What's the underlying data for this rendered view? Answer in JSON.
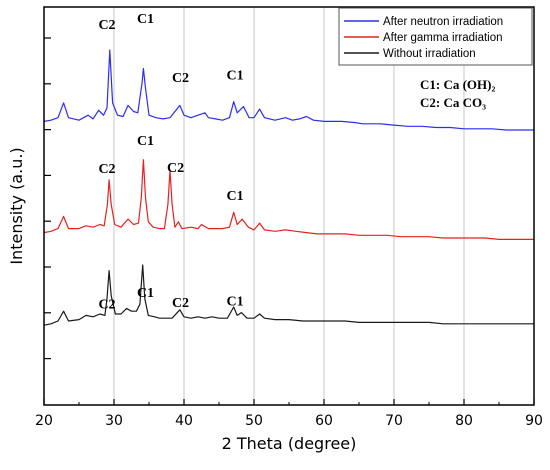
{
  "chart_data": {
    "type": "line",
    "xlabel": "2 Theta (degree)",
    "ylabel": "Intensity (a.u.)",
    "xlim": [
      20,
      90
    ],
    "xticks": [
      20,
      30,
      40,
      50,
      60,
      70,
      80,
      90
    ],
    "grid": true,
    "legend_position": "top-right",
    "series": [
      {
        "name": "After neutron irradiation",
        "color": "#2d2df0",
        "points": [
          [
            20,
            93
          ],
          [
            21,
            92
          ],
          [
            22,
            90
          ],
          [
            22.8,
            78
          ],
          [
            23.5,
            90
          ],
          [
            25,
            92
          ],
          [
            26.3,
            88
          ],
          [
            27,
            91
          ],
          [
            27.8,
            84
          ],
          [
            28.5,
            88
          ],
          [
            29.0,
            82
          ],
          [
            29.4,
            35
          ],
          [
            29.8,
            78
          ],
          [
            30.5,
            88
          ],
          [
            31.3,
            89
          ],
          [
            32.0,
            80
          ],
          [
            32.8,
            85
          ],
          [
            33.4,
            86
          ],
          [
            34.0,
            62
          ],
          [
            34.2,
            50
          ],
          [
            34.5,
            66
          ],
          [
            35.0,
            88
          ],
          [
            36.0,
            90
          ],
          [
            37.0,
            91
          ],
          [
            38.0,
            90
          ],
          [
            39.4,
            80
          ],
          [
            40.0,
            88
          ],
          [
            41.0,
            90
          ],
          [
            42.0,
            88
          ],
          [
            43.0,
            86
          ],
          [
            43.5,
            90
          ],
          [
            44.5,
            91
          ],
          [
            45.5,
            92
          ],
          [
            46.5,
            90
          ],
          [
            47.1,
            77
          ],
          [
            47.6,
            86
          ],
          [
            48.5,
            81
          ],
          [
            49.3,
            90
          ],
          [
            50.0,
            90
          ],
          [
            50.8,
            83
          ],
          [
            51.5,
            90
          ],
          [
            53.0,
            92
          ],
          [
            54.5,
            90
          ],
          [
            55.5,
            92
          ],
          [
            56.5,
            91
          ],
          [
            57.5,
            89
          ],
          [
            58.5,
            92
          ],
          [
            60.0,
            93
          ],
          [
            62.5,
            93
          ],
          [
            64.5,
            94
          ],
          [
            65.5,
            95
          ],
          [
            68.0,
            95
          ],
          [
            70.0,
            96
          ],
          [
            72.0,
            97
          ],
          [
            74.0,
            97
          ],
          [
            76.0,
            98
          ],
          [
            78.0,
            98
          ],
          [
            80.0,
            99
          ],
          [
            82.0,
            99
          ],
          [
            84.0,
            99
          ],
          [
            86.0,
            100
          ],
          [
            88.0,
            100
          ],
          [
            90.0,
            100
          ]
        ]
      },
      {
        "name": "After gamma irradiation",
        "color": "#e32222",
        "points": [
          [
            20,
            76
          ],
          [
            21,
            75
          ],
          [
            22,
            73
          ],
          [
            22.8,
            64
          ],
          [
            23.5,
            73
          ],
          [
            25,
            73
          ],
          [
            26,
            71
          ],
          [
            27,
            72
          ],
          [
            28,
            70
          ],
          [
            28.6,
            71
          ],
          [
            29.05,
            55
          ],
          [
            29.3,
            37
          ],
          [
            29.6,
            55
          ],
          [
            30.1,
            70
          ],
          [
            31,
            72
          ],
          [
            32,
            66
          ],
          [
            32.8,
            70
          ],
          [
            33.5,
            69
          ],
          [
            33.9,
            50
          ],
          [
            34.2,
            22
          ],
          [
            34.5,
            50
          ],
          [
            34.9,
            68
          ],
          [
            35.6,
            72
          ],
          [
            36.5,
            73
          ],
          [
            37.2,
            73
          ],
          [
            37.7,
            55
          ],
          [
            38.0,
            30
          ],
          [
            38.3,
            55
          ],
          [
            38.7,
            72
          ],
          [
            39.2,
            68
          ],
          [
            39.7,
            73
          ],
          [
            41,
            72
          ],
          [
            42,
            73
          ],
          [
            42.5,
            70
          ],
          [
            43.5,
            73
          ],
          [
            44.5,
            73
          ],
          [
            45.5,
            73
          ],
          [
            46.5,
            72
          ],
          [
            47.1,
            61
          ],
          [
            47.6,
            70
          ],
          [
            48.3,
            66
          ],
          [
            49.2,
            72
          ],
          [
            50.0,
            74
          ],
          [
            50.8,
            69
          ],
          [
            51.5,
            74
          ],
          [
            53,
            75
          ],
          [
            54.5,
            74
          ],
          [
            56,
            75
          ],
          [
            57.5,
            76
          ],
          [
            59,
            77
          ],
          [
            61,
            77
          ],
          [
            63,
            77
          ],
          [
            65,
            78
          ],
          [
            67,
            78
          ],
          [
            69,
            78
          ],
          [
            71,
            79
          ],
          [
            73,
            79
          ],
          [
            75,
            79
          ],
          [
            77,
            80
          ],
          [
            79,
            80
          ],
          [
            81,
            80
          ],
          [
            83,
            80
          ],
          [
            85,
            81
          ],
          [
            87,
            81
          ],
          [
            89,
            81
          ],
          [
            90,
            81
          ]
        ]
      },
      {
        "name": "Without irradiation",
        "color": "#1a1a1a",
        "points": [
          [
            20,
            43
          ],
          [
            21,
            42
          ],
          [
            22,
            40
          ],
          [
            22.8,
            33
          ],
          [
            23.5,
            40
          ],
          [
            25,
            39
          ],
          [
            26,
            36
          ],
          [
            27,
            37
          ],
          [
            28,
            35
          ],
          [
            28.7,
            36
          ],
          [
            29.0,
            24
          ],
          [
            29.3,
            4
          ],
          [
            29.6,
            22
          ],
          [
            30.2,
            35
          ],
          [
            31,
            35
          ],
          [
            31.8,
            31
          ],
          [
            32.5,
            33
          ],
          [
            33.2,
            33
          ],
          [
            33.7,
            28
          ],
          [
            34.1,
            0
          ],
          [
            34.4,
            24
          ],
          [
            34.9,
            36
          ],
          [
            35.8,
            37
          ],
          [
            36.5,
            38
          ],
          [
            37.5,
            38
          ],
          [
            38.3,
            38
          ],
          [
            39.4,
            32
          ],
          [
            40.0,
            37
          ],
          [
            41,
            38
          ],
          [
            42,
            37
          ],
          [
            43,
            38
          ],
          [
            44,
            37
          ],
          [
            45,
            38
          ],
          [
            46.2,
            38
          ],
          [
            47.1,
            30
          ],
          [
            47.6,
            36
          ],
          [
            48.2,
            34
          ],
          [
            49,
            38
          ],
          [
            50.0,
            38
          ],
          [
            50.8,
            35
          ],
          [
            51.5,
            38
          ],
          [
            53,
            39
          ],
          [
            55,
            39
          ],
          [
            57,
            40
          ],
          [
            59,
            40
          ],
          [
            61,
            40
          ],
          [
            63,
            40
          ],
          [
            65,
            41
          ],
          [
            67,
            41
          ],
          [
            69,
            41
          ],
          [
            71,
            41
          ],
          [
            73,
            41
          ],
          [
            75,
            41
          ],
          [
            77,
            42
          ],
          [
            79,
            42
          ],
          [
            81,
            42
          ],
          [
            83,
            42
          ],
          [
            85,
            42
          ],
          [
            87,
            42
          ],
          [
            89,
            42
          ],
          [
            90,
            42
          ]
        ]
      }
    ],
    "annotations": [
      {
        "text": "C2",
        "x": 29.0,
        "y": 18,
        "color": "#000000"
      },
      {
        "text": "C1",
        "x": 34.5,
        "y": 13,
        "color": "#000000"
      },
      {
        "text": "C2",
        "x": 39.5,
        "y": 61,
        "color": "#000000"
      },
      {
        "text": "C1",
        "x": 47.3,
        "y": 59,
        "color": "#000000"
      },
      {
        "text": "C2",
        "x": 29.0,
        "y": 32,
        "color": "#000000"
      },
      {
        "text": "C1",
        "x": 34.5,
        "y": 11,
        "color": "#000000"
      },
      {
        "text": "C2",
        "x": 38.8,
        "y": 31,
        "color": "#000000"
      },
      {
        "text": "C1",
        "x": 47.3,
        "y": 52,
        "color": "#000000"
      },
      {
        "text": "C2",
        "x": 29.0,
        "y": 31,
        "color": "#000000"
      },
      {
        "text": "C1",
        "x": 34.5,
        "y": 23,
        "color": "#000000"
      },
      {
        "text": "C2",
        "x": 39.5,
        "y": 30,
        "color": "#000000"
      },
      {
        "text": "C1",
        "x": 47.3,
        "y": 29,
        "color": "#000000"
      }
    ],
    "phase_legend": [
      "C1: Ca (OH)₂",
      "C2: Ca CO₃"
    ]
  }
}
